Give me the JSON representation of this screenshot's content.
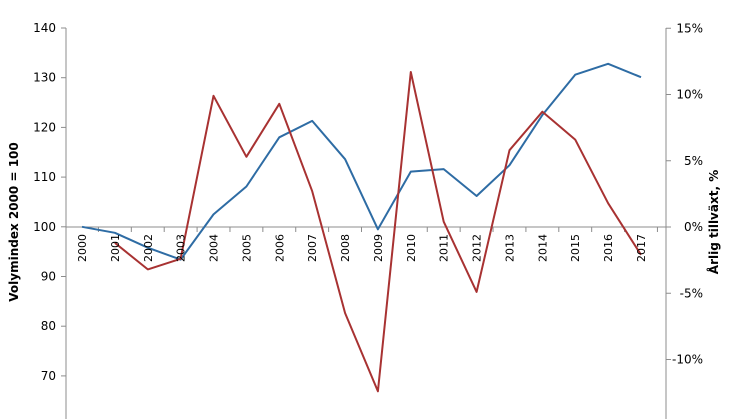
{
  "chart_data": {
    "type": "line",
    "title": "",
    "x": [
      "2000",
      "2001",
      "2002",
      "2003",
      "2004",
      "2005",
      "2006",
      "2007",
      "2008",
      "2009",
      "2010",
      "2011",
      "2012",
      "2013",
      "2014",
      "2015",
      "2016",
      "2017"
    ],
    "ylabel_left": "Volymindex 2000 = 100",
    "ylabel_right": "Årlig tillväxt, %",
    "ylim_left": [
      60,
      140
    ],
    "yticks_left": [
      70,
      80,
      90,
      100,
      110,
      120,
      130,
      140
    ],
    "ylim_right": [
      -15,
      15
    ],
    "yticks_right": [
      -10,
      -5,
      0,
      5,
      10,
      15
    ],
    "yticklabels_right": [
      "-10%",
      "-5%",
      "0%",
      "5%",
      "10%",
      "15%"
    ],
    "grid": false,
    "legend": "none",
    "series": [
      {
        "axis": "left",
        "color": "#2e6ca4",
        "values": [
          100,
          98.8,
          95.8,
          93.4,
          102.5,
          108.1,
          118.0,
          121.3,
          113.6,
          99.5,
          111.1,
          111.6,
          106.2,
          112.4,
          122.5,
          130.6,
          132.8,
          130.1
        ]
      },
      {
        "axis": "right",
        "color": "#a83232",
        "values": [
          null,
          -1.2,
          -3.2,
          -2.4,
          9.9,
          5.3,
          9.3,
          2.7,
          -6.5,
          -12.4,
          11.7,
          0.4,
          -4.9,
          5.8,
          8.7,
          6.6,
          1.8,
          -2.1
        ]
      }
    ]
  }
}
